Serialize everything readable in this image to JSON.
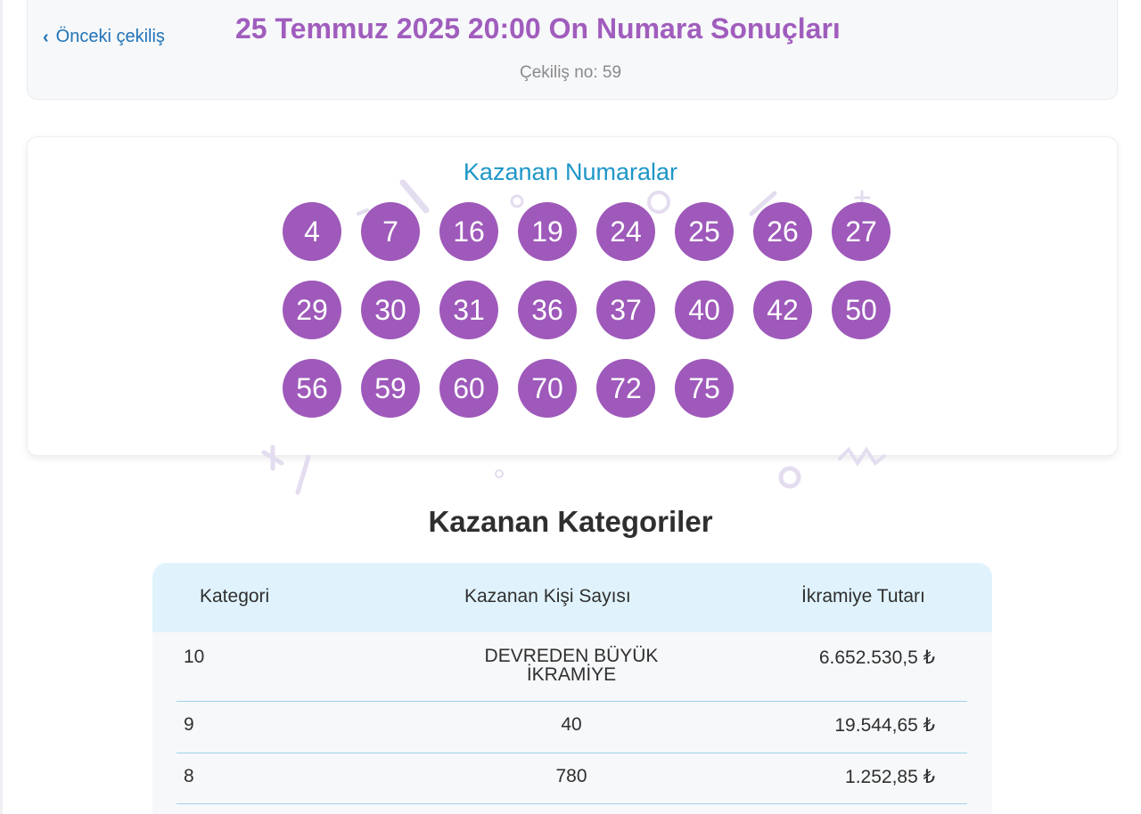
{
  "header": {
    "prev_label": "Önceki çekiliş",
    "title": "25 Temmuz 2025 20:00 On Numara Sonuçları",
    "draw_number": "Çekiliş no: 59"
  },
  "winning_numbers": {
    "title": "Kazanan Numaralar",
    "numbers": [
      "4",
      "7",
      "16",
      "19",
      "24",
      "25",
      "26",
      "27",
      "29",
      "30",
      "31",
      "36",
      "37",
      "40",
      "42",
      "50",
      "56",
      "59",
      "60",
      "70",
      "72",
      "75"
    ]
  },
  "categories": {
    "title": "Kazanan Kategoriler",
    "headers": [
      "Kategori",
      "Kazanan Kişi Sayısı",
      "İkramiye Tutarı"
    ],
    "rows": [
      {
        "category": "10",
        "winners_line1": "DEVREDEN BÜYÜK",
        "winners_line2": "İKRAMİYE",
        "prize": "6.652.530,5 ₺"
      },
      {
        "category": "9",
        "winners": "40",
        "prize": "19.544,65 ₺"
      },
      {
        "category": "8",
        "winners": "780",
        "prize": "1.252,85 ₺"
      }
    ]
  },
  "colors": {
    "accent_purple": "#9e59ba",
    "title_purple": "#a05dbd",
    "link_blue": "#1f73b7",
    "teal_title": "#1e96c8",
    "table_header_bg": "#e0f3fc"
  }
}
